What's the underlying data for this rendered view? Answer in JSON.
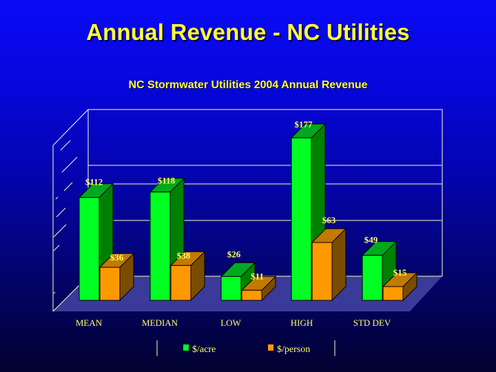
{
  "slide": {
    "title": "Annual Revenue - NC Utilities"
  },
  "colors": {
    "series_acre": "#00ff22",
    "series_acre_side": "#008000",
    "series_acre_top": "#00a820",
    "series_person": "#ff9900",
    "series_person_side": "#7a4c00",
    "series_person_top": "#c27a00",
    "floor": "#3a3a9a",
    "gridline": "#ffffcc",
    "text": "#ffff33"
  },
  "chart_data": {
    "type": "bar",
    "title": "NC Stormwater Utilities 2004 Annual Revenue",
    "xlabel": "",
    "ylabel": "",
    "categories": [
      "MEAN",
      "MEDIAN",
      "LOW",
      "HIGH",
      "STD DEV"
    ],
    "series": [
      {
        "name": "$/acre",
        "values": [
          112,
          118,
          26,
          177,
          49
        ],
        "labels": [
          "$112",
          "$118",
          "$26",
          "$177",
          "$49"
        ]
      },
      {
        "name": "$/person",
        "values": [
          36,
          38,
          11,
          63,
          15
        ],
        "labels": [
          "$36",
          "$38",
          "$11",
          "$63",
          "$15"
        ]
      }
    ],
    "ylim": [
      0,
      180
    ],
    "grid": true,
    "three_d": true,
    "legend_position": "bottom"
  }
}
